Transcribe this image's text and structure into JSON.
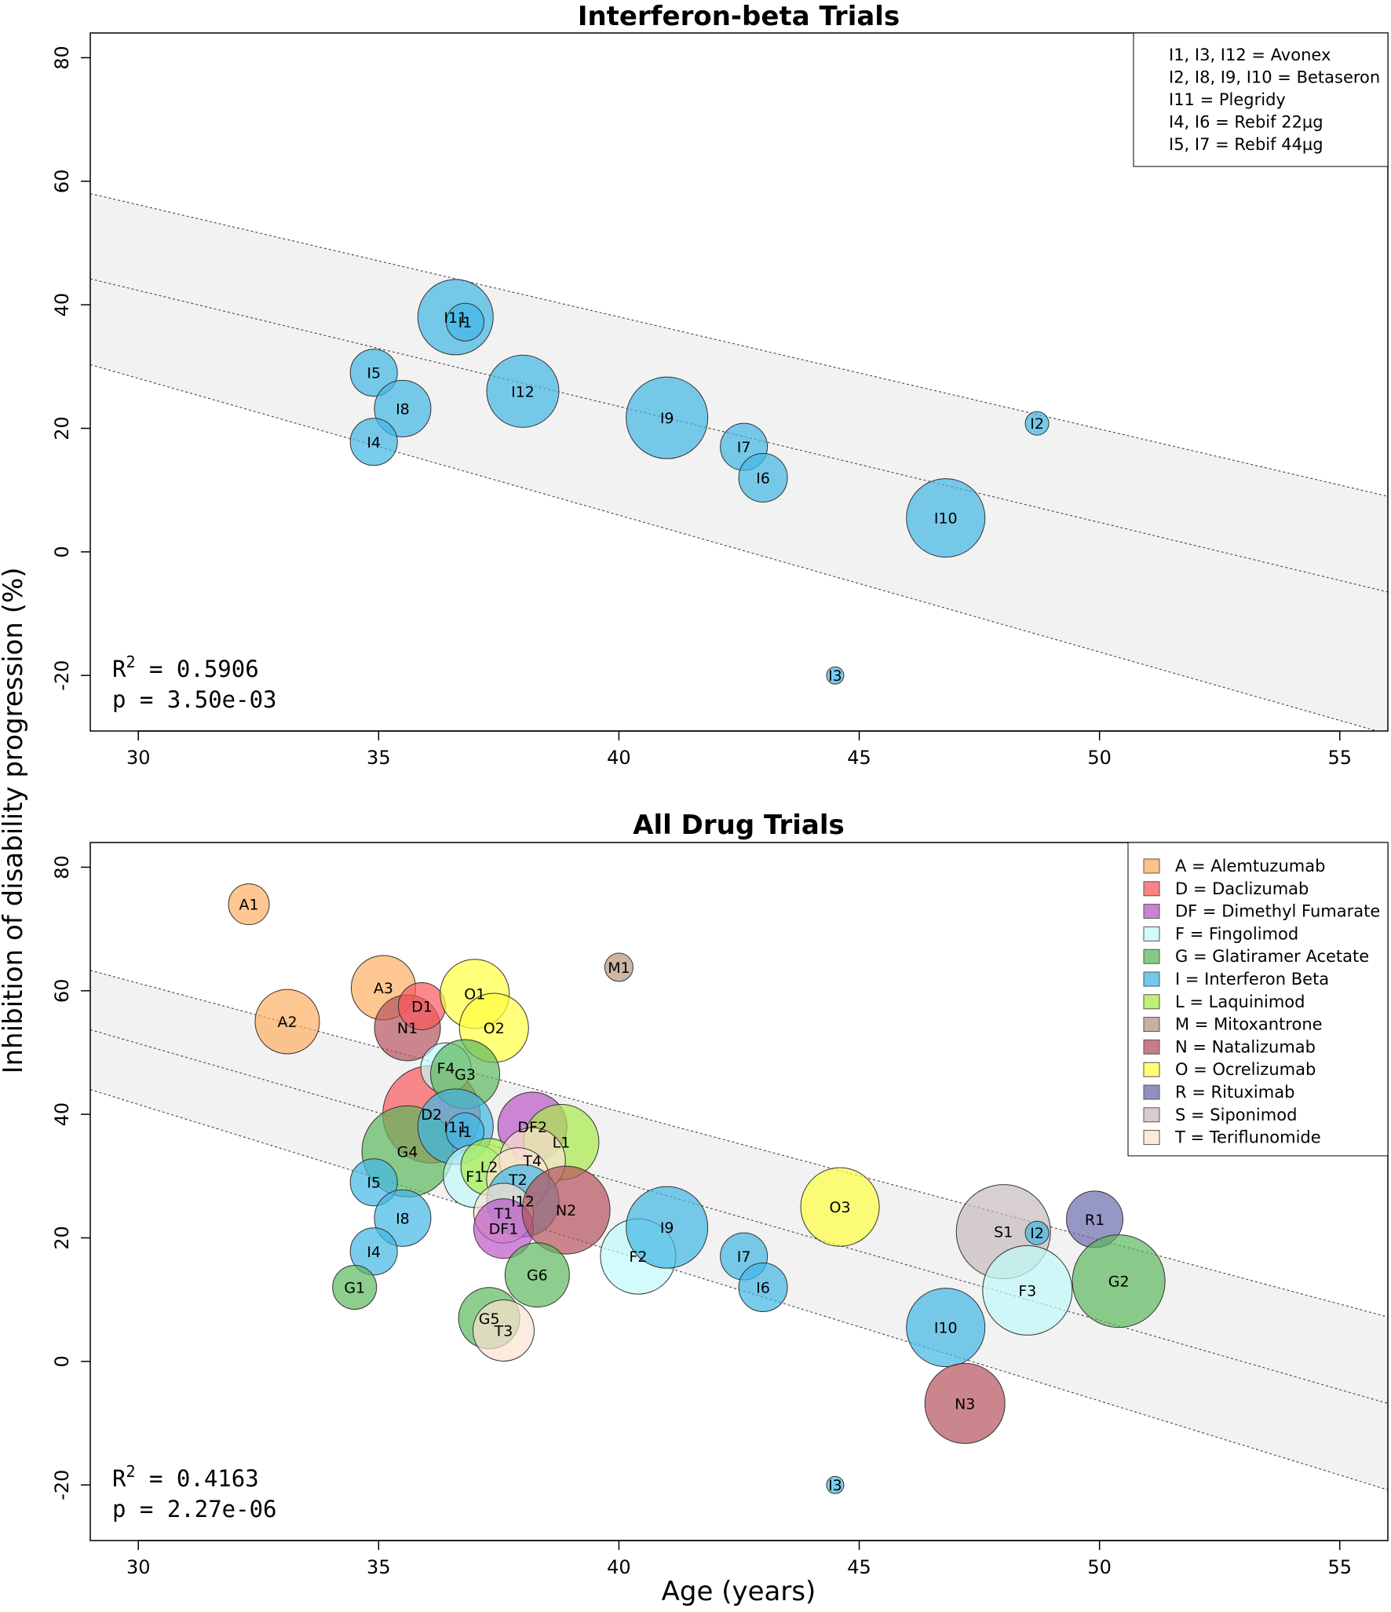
{
  "figure": {
    "ylabel": "Inhibition of disability progression (%)",
    "xlabel": "Age (years)"
  },
  "chart_data": [
    {
      "type": "scatter",
      "title": "Interferon-beta Trials",
      "xlim": [
        29,
        56
      ],
      "ylim": [
        -29,
        84
      ],
      "xticks": [
        30,
        35,
        40,
        45,
        50,
        55
      ],
      "yticks": [
        -20,
        0,
        20,
        40,
        60,
        80
      ],
      "regression": {
        "fit": [
          [
            29,
            44.2
          ],
          [
            56,
            -6.5
          ]
        ],
        "ci_upper": [
          [
            29,
            58.0
          ],
          [
            56,
            9.0
          ]
        ],
        "ci_lower": [
          [
            29,
            30.3
          ],
          [
            56,
            -29.5
          ]
        ]
      },
      "stats": {
        "r2_prefix": "R",
        "r2_sup": "2",
        "r2_value": " = 0.5906",
        "p": "p = 3.50e-03"
      },
      "legend": {
        "style": "text",
        "position": "top-right",
        "entries": [
          "I1, I3, I12 = Avonex",
          "I2, I8, I9, I10 = Betaseron",
          "I11 = Plegridy",
          "I4, I6 = Rebif 22µg",
          "I5, I7 = Rebif 44µg"
        ]
      },
      "points": [
        {
          "label": "I11",
          "x": 36.6,
          "y": 38.0,
          "size": 48,
          "group": "I"
        },
        {
          "label": "I1",
          "x": 36.8,
          "y": 37.2,
          "size": 24,
          "group": "I"
        },
        {
          "label": "I5",
          "x": 34.9,
          "y": 29.0,
          "size": 30,
          "group": "I"
        },
        {
          "label": "I8",
          "x": 35.5,
          "y": 23.2,
          "size": 36,
          "group": "I"
        },
        {
          "label": "I4",
          "x": 34.9,
          "y": 17.8,
          "size": 30,
          "group": "I"
        },
        {
          "label": "I12",
          "x": 38.0,
          "y": 26.0,
          "size": 46,
          "group": "I"
        },
        {
          "label": "I9",
          "x": 41.0,
          "y": 21.7,
          "size": 52,
          "group": "I"
        },
        {
          "label": "I7",
          "x": 42.6,
          "y": 17.0,
          "size": 30,
          "group": "I"
        },
        {
          "label": "I6",
          "x": 43.0,
          "y": 12.0,
          "size": 31,
          "group": "I"
        },
        {
          "label": "I10",
          "x": 46.8,
          "y": 5.5,
          "size": 50,
          "group": "I"
        },
        {
          "label": "I2",
          "x": 48.7,
          "y": 20.8,
          "size": 15,
          "group": "I"
        },
        {
          "label": "I3",
          "x": 44.5,
          "y": -20.0,
          "size": 11,
          "group": "I"
        }
      ]
    },
    {
      "type": "scatter",
      "title": "All Drug Trials",
      "xlim": [
        29,
        56
      ],
      "ylim": [
        -29,
        84
      ],
      "xticks": [
        30,
        35,
        40,
        45,
        50,
        55
      ],
      "yticks": [
        -20,
        0,
        20,
        40,
        60,
        80
      ],
      "regression": {
        "fit": [
          [
            29,
            53.7
          ],
          [
            56,
            -6.8
          ]
        ],
        "ci_upper": [
          [
            29,
            63.3
          ],
          [
            56,
            7.2
          ]
        ],
        "ci_lower": [
          [
            29,
            44.0
          ],
          [
            56,
            -20.8
          ]
        ]
      },
      "stats": {
        "r2_prefix": "R",
        "r2_sup": "2",
        "r2_value": " = 0.4163",
        "p": "p = 2.27e-06"
      },
      "legend": {
        "style": "swatch",
        "position": "top-right",
        "entries": [
          {
            "label": "A = Alemtuzumab",
            "color": "#FDAE61"
          },
          {
            "label": "D = Daclizumab",
            "color": "#F8595B"
          },
          {
            "label": "DF = Dimethyl Fumarate",
            "color": "#BB57C8"
          },
          {
            "label": "F = Fingolimod",
            "color": "#C2FAFA"
          },
          {
            "label": "G = Glatiramer Acetate",
            "color": "#5CB85C"
          },
          {
            "label": "I = Interferon Beta",
            "color": "#41B6E6"
          },
          {
            "label": "L = Laquinimod",
            "color": "#A9EB4A"
          },
          {
            "label": "M = Mitoxantrone",
            "color": "#B8977E"
          },
          {
            "label": "N = Natalizumab",
            "color": "#B5525C"
          },
          {
            "label": "O = Ocrelizumab",
            "color": "#FFFF40"
          },
          {
            "label": "R = Rituximab",
            "color": "#6B6BAE"
          },
          {
            "label": "S = Siponimod",
            "color": "#C8BCBC"
          },
          {
            "label": "T = Teriflunomide",
            "color": "#FBE3D0"
          }
        ]
      },
      "points": [
        {
          "label": "A1",
          "x": 32.3,
          "y": 74.0,
          "size": 26,
          "group": "A"
        },
        {
          "label": "A2",
          "x": 33.1,
          "y": 55.0,
          "size": 41,
          "group": "A"
        },
        {
          "label": "A3",
          "x": 35.1,
          "y": 60.5,
          "size": 41,
          "group": "A"
        },
        {
          "label": "M1",
          "x": 40.0,
          "y": 63.8,
          "size": 18,
          "group": "M"
        },
        {
          "label": "N1",
          "x": 35.6,
          "y": 54.0,
          "size": 42,
          "group": "N"
        },
        {
          "label": "D1",
          "x": 35.9,
          "y": 57.5,
          "size": 30,
          "group": "D"
        },
        {
          "label": "O1",
          "x": 37.0,
          "y": 59.5,
          "size": 44,
          "group": "O"
        },
        {
          "label": "O2",
          "x": 37.4,
          "y": 54.0,
          "size": 44,
          "group": "O"
        },
        {
          "label": "D2",
          "x": 36.1,
          "y": 40.0,
          "size": 62,
          "group": "D"
        },
        {
          "label": "F4",
          "x": 36.4,
          "y": 47.5,
          "size": 32,
          "group": "F"
        },
        {
          "label": "G3",
          "x": 36.8,
          "y": 46.5,
          "size": 44,
          "group": "G"
        },
        {
          "label": "G4",
          "x": 35.6,
          "y": 34.0,
          "size": 58,
          "group": "G"
        },
        {
          "label": "I11",
          "x": 36.6,
          "y": 38.0,
          "size": 48,
          "group": "I"
        },
        {
          "label": "I1",
          "x": 36.8,
          "y": 37.2,
          "size": 24,
          "group": "I"
        },
        {
          "label": "I5",
          "x": 34.9,
          "y": 29.0,
          "size": 30,
          "group": "I"
        },
        {
          "label": "I8",
          "x": 35.5,
          "y": 23.2,
          "size": 36,
          "group": "I"
        },
        {
          "label": "I4",
          "x": 34.9,
          "y": 17.8,
          "size": 30,
          "group": "I"
        },
        {
          "label": "G1",
          "x": 34.5,
          "y": 12.0,
          "size": 28,
          "group": "G"
        },
        {
          "label": "DF2",
          "x": 38.2,
          "y": 38.0,
          "size": 44,
          "group": "DF"
        },
        {
          "label": "L1",
          "x": 38.8,
          "y": 35.5,
          "size": 48,
          "group": "L"
        },
        {
          "label": "F1",
          "x": 37.0,
          "y": 30.0,
          "size": 40,
          "group": "F"
        },
        {
          "label": "L2",
          "x": 37.3,
          "y": 31.5,
          "size": 36,
          "group": "L"
        },
        {
          "label": "T4",
          "x": 38.2,
          "y": 32.5,
          "size": 42,
          "group": "T"
        },
        {
          "label": "T2",
          "x": 37.9,
          "y": 29.5,
          "size": 40,
          "group": "T"
        },
        {
          "label": "I12",
          "x": 38.0,
          "y": 26.0,
          "size": 46,
          "group": "I"
        },
        {
          "label": "T1",
          "x": 37.6,
          "y": 24.0,
          "size": 38,
          "group": "T"
        },
        {
          "label": "DF1",
          "x": 37.6,
          "y": 21.5,
          "size": 38,
          "group": "DF"
        },
        {
          "label": "N2",
          "x": 38.9,
          "y": 24.5,
          "size": 56,
          "group": "N"
        },
        {
          "label": "G6",
          "x": 38.3,
          "y": 14.0,
          "size": 41,
          "group": "G"
        },
        {
          "label": "G5",
          "x": 37.3,
          "y": 7.0,
          "size": 39,
          "group": "G"
        },
        {
          "label": "T3",
          "x": 37.6,
          "y": 5.0,
          "size": 39,
          "group": "T"
        },
        {
          "label": "F2",
          "x": 40.4,
          "y": 17.0,
          "size": 48,
          "group": "F"
        },
        {
          "label": "I9",
          "x": 41.0,
          "y": 21.7,
          "size": 52,
          "group": "I"
        },
        {
          "label": "I7",
          "x": 42.6,
          "y": 17.0,
          "size": 30,
          "group": "I"
        },
        {
          "label": "I6",
          "x": 43.0,
          "y": 12.0,
          "size": 31,
          "group": "I"
        },
        {
          "label": "O3",
          "x": 44.6,
          "y": 25.0,
          "size": 50,
          "group": "O"
        },
        {
          "label": "S1",
          "x": 48.0,
          "y": 21.0,
          "size": 60,
          "group": "S"
        },
        {
          "label": "F3",
          "x": 48.5,
          "y": 11.5,
          "size": 57,
          "group": "F"
        },
        {
          "label": "I2",
          "x": 48.7,
          "y": 20.8,
          "size": 15,
          "group": "I"
        },
        {
          "label": "R1",
          "x": 49.9,
          "y": 23.0,
          "size": 36,
          "group": "R"
        },
        {
          "label": "G2",
          "x": 50.4,
          "y": 13.0,
          "size": 59,
          "group": "G"
        },
        {
          "label": "I10",
          "x": 46.8,
          "y": 5.5,
          "size": 50,
          "group": "I"
        },
        {
          "label": "N3",
          "x": 47.2,
          "y": -6.8,
          "size": 51,
          "group": "N"
        },
        {
          "label": "I3",
          "x": 44.5,
          "y": -20.0,
          "size": 11,
          "group": "I"
        }
      ]
    }
  ]
}
